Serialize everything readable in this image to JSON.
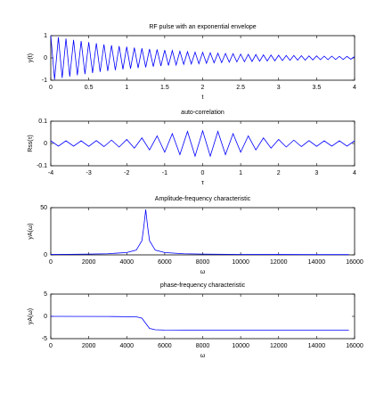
{
  "chart_data": [
    {
      "type": "line",
      "title": "RF pulse with an exponential envelope",
      "xlabel": "t",
      "ylabel": "y(t)",
      "color": "#0000ff",
      "x": [
        0,
        0.05,
        0.1,
        0.15,
        0.2,
        0.25,
        0.3,
        0.35,
        0.4,
        0.45,
        0.5,
        0.55,
        0.6,
        0.65,
        0.7,
        0.75,
        0.8,
        0.85,
        0.9,
        0.95,
        1,
        1.05,
        1.1,
        1.15,
        1.2,
        1.25,
        1.3,
        1.35,
        1.4,
        1.45,
        1.5,
        1.55,
        1.6,
        1.65,
        1.7,
        1.75,
        1.8,
        1.85,
        1.9,
        1.95,
        2,
        2.05,
        2.1,
        2.15,
        2.2,
        2.25,
        2.3,
        2.35,
        2.4,
        2.45,
        2.5,
        2.55,
        2.6,
        2.65,
        2.7,
        2.75,
        2.8,
        2.85,
        2.9,
        2.95,
        3,
        3.05,
        3.1,
        3.15,
        3.2,
        3.25,
        3.3,
        3.35,
        3.4,
        3.45,
        3.5,
        3.55,
        3.6,
        3.65,
        3.7,
        3.75,
        3.8,
        3.85,
        3.9,
        3.95,
        4
      ],
      "values": [
        1,
        -0.97,
        0.93,
        -0.9,
        0.87,
        -0.84,
        0.81,
        -0.78,
        0.76,
        -0.73,
        0.71,
        -0.68,
        0.66,
        -0.63,
        0.61,
        -0.59,
        0.57,
        -0.55,
        0.53,
        -0.51,
        0.5,
        -0.48,
        0.46,
        -0.45,
        0.43,
        -0.42,
        0.4,
        -0.39,
        0.38,
        -0.36,
        0.35,
        -0.34,
        0.33,
        -0.32,
        0.3,
        -0.29,
        0.28,
        -0.27,
        0.26,
        -0.26,
        0.25,
        -0.24,
        0.23,
        -0.22,
        0.21,
        -0.21,
        0.2,
        -0.19,
        0.19,
        -0.18,
        0.17,
        -0.17,
        0.16,
        -0.16,
        0.15,
        -0.15,
        0.14,
        -0.14,
        0.13,
        -0.13,
        0.12,
        -0.12,
        0.11,
        -0.11,
        0.11,
        -0.1,
        0.1,
        -0.1,
        0.09,
        -0.09,
        0.09,
        -0.08,
        0.08,
        -0.08,
        0.08,
        -0.07,
        0.07,
        -0.07,
        0.07,
        -0.06,
        0.06
      ],
      "xlim": [
        0,
        4
      ],
      "xticks": [
        0,
        0.5,
        1,
        1.5,
        2,
        2.5,
        3,
        3.5,
        4
      ],
      "ylim": [
        -1,
        1
      ],
      "yticks": [
        -1,
        0,
        1
      ]
    },
    {
      "type": "line",
      "title": "auto-correlation",
      "xlabel": "τ",
      "ylabel": "Rss(τ)",
      "color": "#0000ff",
      "x": [
        -4,
        -3.8,
        -3.6,
        -3.4,
        -3.2,
        -3,
        -2.8,
        -2.6,
        -2.4,
        -2.2,
        -2,
        -1.8,
        -1.6,
        -1.4,
        -1.2,
        -1,
        -0.8,
        -0.6,
        -0.4,
        -0.2,
        0,
        0.2,
        0.4,
        0.6,
        0.8,
        1,
        1.2,
        1.4,
        1.6,
        1.8,
        2,
        2.2,
        2.4,
        2.6,
        2.8,
        3,
        3.2,
        3.4,
        3.6,
        3.8,
        4
      ],
      "values": [
        0.012,
        -0.012,
        0.012,
        -0.012,
        0.012,
        -0.013,
        0.013,
        -0.014,
        0.015,
        -0.016,
        0.018,
        -0.021,
        0.025,
        -0.029,
        0.034,
        -0.039,
        0.044,
        -0.05,
        0.054,
        -0.057,
        0.057,
        -0.057,
        0.054,
        -0.05,
        0.044,
        -0.039,
        0.034,
        -0.029,
        0.025,
        -0.021,
        0.018,
        -0.016,
        0.015,
        -0.014,
        0.013,
        -0.013,
        0.012,
        -0.012,
        0.012,
        -0.012,
        0.012
      ],
      "xlim": [
        -4,
        4
      ],
      "xticks": [
        -4,
        -3,
        -2,
        -1,
        0,
        1,
        2,
        3,
        4
      ],
      "ylim": [
        -0.1,
        0.1
      ],
      "yticks": [
        -0.1,
        0,
        0.1
      ]
    },
    {
      "type": "line",
      "title": "Amplitude-frequency characteristic",
      "xlabel": "ω",
      "ylabel": "yA(ω)",
      "color": "#0000ff",
      "x": [
        0,
        1000,
        2000,
        3000,
        4000,
        4500,
        4800,
        4900,
        5000,
        5100,
        5200,
        5500,
        6000,
        7000,
        8000,
        10000,
        12000,
        14000,
        15700
      ],
      "values": [
        0.5,
        0.6,
        0.8,
        1.2,
        2.5,
        5,
        15,
        30,
        48,
        30,
        15,
        5,
        2.5,
        1.2,
        0.8,
        0.5,
        0.4,
        0.3,
        0.3
      ],
      "xlim": [
        0,
        16000
      ],
      "xticks": [
        0,
        2000,
        4000,
        6000,
        8000,
        10000,
        12000,
        14000,
        16000
      ],
      "ylim": [
        0,
        50
      ],
      "yticks": [
        0,
        50
      ]
    },
    {
      "type": "line",
      "title": "phase-frequency characteristic",
      "xlabel": "ω",
      "ylabel": "yA(ω)",
      "color": "#0000ff",
      "x": [
        0,
        3000,
        4500,
        4800,
        5000,
        5200,
        5500,
        6000,
        8000,
        15700
      ],
      "values": [
        0,
        -0.02,
        -0.1,
        -0.4,
        -1.57,
        -2.7,
        -3,
        -3.08,
        -3.12,
        -3.13
      ],
      "xlim": [
        0,
        16000
      ],
      "xticks": [
        0,
        2000,
        4000,
        6000,
        8000,
        10000,
        12000,
        14000,
        16000
      ],
      "ylim": [
        -5,
        5
      ],
      "yticks": [
        -5,
        0,
        5
      ]
    }
  ]
}
